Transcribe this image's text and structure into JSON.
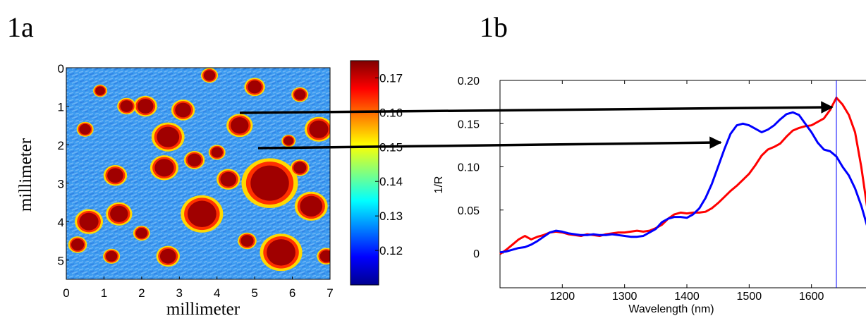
{
  "panels": {
    "a_label": "1a",
    "b_label": "1b"
  },
  "chart_data": [
    {
      "type": "heatmap",
      "xlabel": "millimeter",
      "ylabel": "millimeter",
      "xlim": [
        0,
        7
      ],
      "ylim": [
        0,
        5.5
      ],
      "x_ticks": [
        "0",
        "1",
        "2",
        "3",
        "4",
        "5",
        "6",
        "7"
      ],
      "y_ticks": [
        "0",
        "1",
        "2",
        "3",
        "4",
        "5"
      ],
      "colorbar": {
        "range": [
          0.11,
          0.175
        ],
        "ticks": [
          "0.17",
          "0.16",
          "0.15",
          "0.14",
          "0.13",
          "0.12"
        ],
        "colormap": "jet"
      },
      "background_level": 0.13,
      "high_spots": [
        {
          "x": 5.4,
          "y": 3.0,
          "r": 0.6
        },
        {
          "x": 3.6,
          "y": 3.8,
          "r": 0.45
        },
        {
          "x": 5.7,
          "y": 4.8,
          "r": 0.45
        },
        {
          "x": 6.5,
          "y": 3.6,
          "r": 0.35
        },
        {
          "x": 2.7,
          "y": 1.8,
          "r": 0.35
        },
        {
          "x": 2.6,
          "y": 2.6,
          "r": 0.3
        },
        {
          "x": 0.6,
          "y": 4.0,
          "r": 0.3
        },
        {
          "x": 1.4,
          "y": 3.8,
          "r": 0.28
        },
        {
          "x": 6.7,
          "y": 1.6,
          "r": 0.3
        },
        {
          "x": 4.6,
          "y": 1.5,
          "r": 0.28
        },
        {
          "x": 3.1,
          "y": 1.1,
          "r": 0.25
        },
        {
          "x": 2.1,
          "y": 1.0,
          "r": 0.25
        },
        {
          "x": 1.3,
          "y": 2.8,
          "r": 0.25
        },
        {
          "x": 4.3,
          "y": 2.9,
          "r": 0.25
        },
        {
          "x": 5.0,
          "y": 0.5,
          "r": 0.22
        },
        {
          "x": 2.7,
          "y": 4.9,
          "r": 0.25
        },
        {
          "x": 4.8,
          "y": 4.5,
          "r": 0.2
        },
        {
          "x": 0.3,
          "y": 4.6,
          "r": 0.2
        },
        {
          "x": 1.6,
          "y": 1.0,
          "r": 0.2
        },
        {
          "x": 6.2,
          "y": 0.7,
          "r": 0.18
        },
        {
          "x": 3.8,
          "y": 0.2,
          "r": 0.18
        },
        {
          "x": 0.5,
          "y": 1.6,
          "r": 0.18
        },
        {
          "x": 1.2,
          "y": 4.9,
          "r": 0.18
        },
        {
          "x": 6.2,
          "y": 2.6,
          "r": 0.2
        },
        {
          "x": 4.0,
          "y": 2.2,
          "r": 0.18
        },
        {
          "x": 6.9,
          "y": 4.9,
          "r": 0.2
        },
        {
          "x": 2.0,
          "y": 4.3,
          "r": 0.18
        },
        {
          "x": 3.4,
          "y": 2.4,
          "r": 0.22
        },
        {
          "x": 0.9,
          "y": 0.6,
          "r": 0.15
        },
        {
          "x": 5.9,
          "y": 1.9,
          "r": 0.15
        }
      ]
    },
    {
      "type": "line",
      "xlabel": "Wavelength (nm)",
      "ylabel": "1/R",
      "xlim": [
        1100,
        1700
      ],
      "ylim": [
        -0.04,
        0.2
      ],
      "x_ticks": [
        "1200",
        "1300",
        "1400",
        "1500",
        "1600"
      ],
      "y_ticks": [
        "0",
        "0.05",
        "0.10",
        "0.15",
        "0.20"
      ],
      "vline_x": 1640,
      "series": [
        {
          "color": "#ff0000",
          "x": [
            1100,
            1110,
            1120,
            1130,
            1140,
            1150,
            1160,
            1170,
            1180,
            1190,
            1200,
            1210,
            1220,
            1230,
            1240,
            1250,
            1260,
            1270,
            1280,
            1290,
            1300,
            1310,
            1320,
            1330,
            1340,
            1350,
            1360,
            1370,
            1380,
            1390,
            1400,
            1410,
            1420,
            1430,
            1440,
            1450,
            1460,
            1470,
            1480,
            1490,
            1500,
            1510,
            1520,
            1530,
            1540,
            1550,
            1560,
            1570,
            1580,
            1590,
            1600,
            1610,
            1620,
            1630,
            1640,
            1650,
            1660,
            1670,
            1680,
            1690,
            1700
          ],
          "values": [
            -0.001,
            0.004,
            0.01,
            0.016,
            0.02,
            0.016,
            0.019,
            0.021,
            0.024,
            0.025,
            0.024,
            0.022,
            0.021,
            0.02,
            0.022,
            0.021,
            0.02,
            0.022,
            0.023,
            0.024,
            0.024,
            0.025,
            0.026,
            0.025,
            0.026,
            0.029,
            0.033,
            0.04,
            0.045,
            0.047,
            0.046,
            0.047,
            0.047,
            0.048,
            0.052,
            0.058,
            0.065,
            0.072,
            0.078,
            0.085,
            0.092,
            0.102,
            0.113,
            0.12,
            0.123,
            0.127,
            0.135,
            0.142,
            0.145,
            0.147,
            0.148,
            0.152,
            0.156,
            0.166,
            0.18,
            0.172,
            0.16,
            0.14,
            0.1,
            0.05,
            0.005
          ]
        },
        {
          "color": "#0000ff",
          "x": [
            1100,
            1110,
            1120,
            1130,
            1140,
            1150,
            1160,
            1170,
            1180,
            1190,
            1200,
            1210,
            1220,
            1230,
            1240,
            1250,
            1260,
            1270,
            1280,
            1290,
            1300,
            1310,
            1320,
            1330,
            1340,
            1350,
            1360,
            1370,
            1380,
            1390,
            1400,
            1410,
            1420,
            1430,
            1440,
            1450,
            1460,
            1470,
            1480,
            1490,
            1500,
            1510,
            1520,
            1530,
            1540,
            1550,
            1560,
            1570,
            1580,
            1590,
            1600,
            1610,
            1620,
            1630,
            1640,
            1650,
            1660,
            1670,
            1680,
            1690,
            1700
          ],
          "values": [
            0.001,
            0.002,
            0.004,
            0.006,
            0.007,
            0.01,
            0.014,
            0.019,
            0.024,
            0.026,
            0.025,
            0.023,
            0.022,
            0.021,
            0.021,
            0.022,
            0.021,
            0.021,
            0.022,
            0.021,
            0.02,
            0.019,
            0.019,
            0.02,
            0.024,
            0.028,
            0.036,
            0.04,
            0.042,
            0.042,
            0.041,
            0.045,
            0.052,
            0.064,
            0.08,
            0.1,
            0.12,
            0.138,
            0.148,
            0.15,
            0.148,
            0.144,
            0.14,
            0.143,
            0.148,
            0.155,
            0.161,
            0.163,
            0.16,
            0.15,
            0.14,
            0.128,
            0.12,
            0.118,
            0.112,
            0.1,
            0.09,
            0.075,
            0.055,
            0.03,
            0.005
          ]
        }
      ]
    }
  ]
}
